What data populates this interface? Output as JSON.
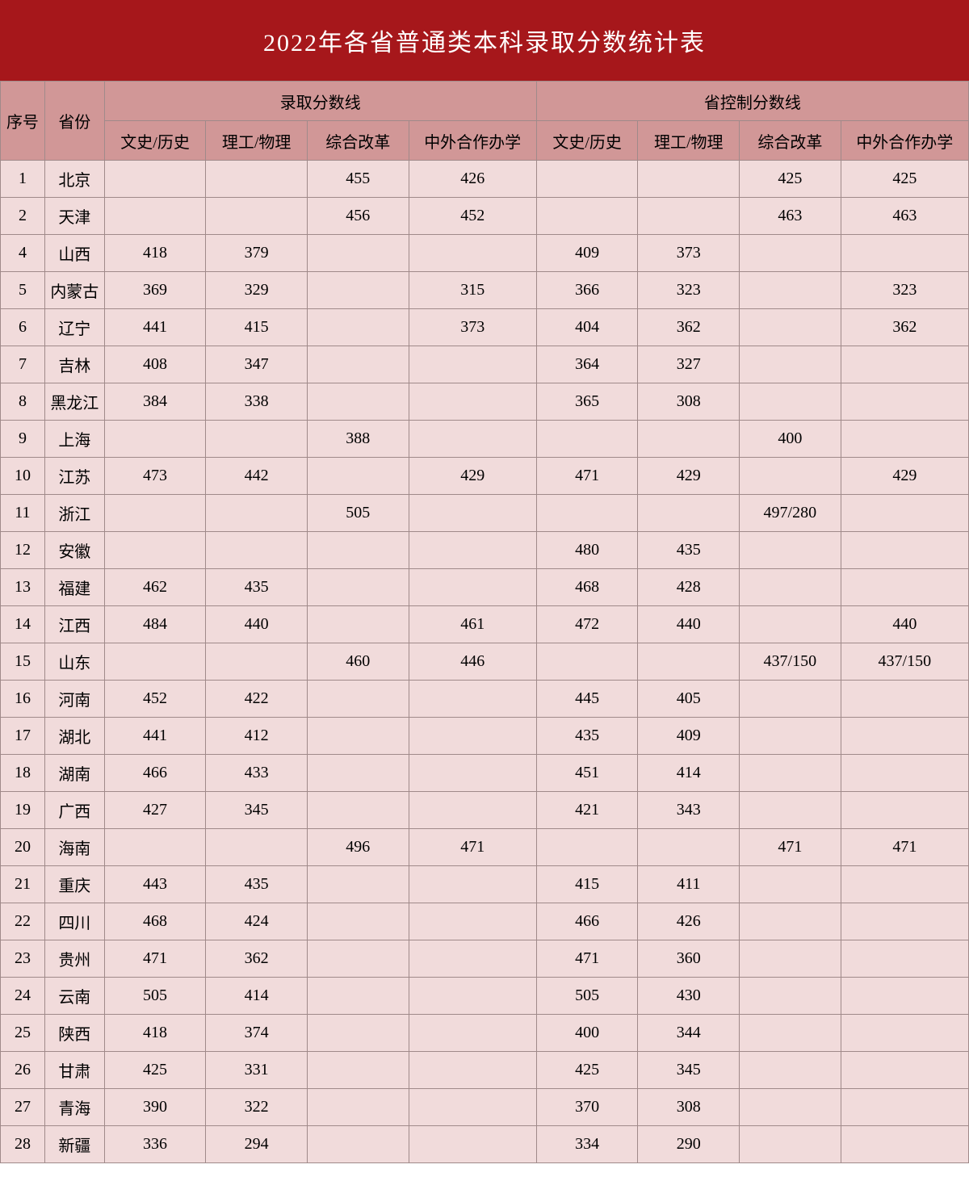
{
  "title": "2022年各省普通类本科录取分数统计表",
  "headers": {
    "idx": "序号",
    "province": "省份",
    "group1": "录取分数线",
    "group2": "省控制分数线",
    "sub": [
      "文史/历史",
      "理工/物理",
      "综合改革",
      "中外合作办学"
    ]
  },
  "rows": [
    {
      "idx": "1",
      "p": "北京",
      "a": [
        "",
        "",
        "455",
        "426"
      ],
      "b": [
        "",
        "",
        "425",
        "425"
      ]
    },
    {
      "idx": "2",
      "p": "天津",
      "a": [
        "",
        "",
        "456",
        "452"
      ],
      "b": [
        "",
        "",
        "463",
        "463"
      ]
    },
    {
      "idx": "4",
      "p": "山西",
      "a": [
        "418",
        "379",
        "",
        ""
      ],
      "b": [
        "409",
        "373",
        "",
        ""
      ]
    },
    {
      "idx": "5",
      "p": "内蒙古",
      "a": [
        "369",
        "329",
        "",
        "315"
      ],
      "b": [
        "366",
        "323",
        "",
        "323"
      ]
    },
    {
      "idx": "6",
      "p": "辽宁",
      "a": [
        "441",
        "415",
        "",
        "373"
      ],
      "b": [
        "404",
        "362",
        "",
        "362"
      ]
    },
    {
      "idx": "7",
      "p": "吉林",
      "a": [
        "408",
        "347",
        "",
        ""
      ],
      "b": [
        "364",
        "327",
        "",
        ""
      ]
    },
    {
      "idx": "8",
      "p": "黑龙江",
      "a": [
        "384",
        "338",
        "",
        ""
      ],
      "b": [
        "365",
        "308",
        "",
        ""
      ]
    },
    {
      "idx": "9",
      "p": "上海",
      "a": [
        "",
        "",
        "388",
        ""
      ],
      "b": [
        "",
        "",
        "400",
        ""
      ]
    },
    {
      "idx": "10",
      "p": "江苏",
      "a": [
        "473",
        "442",
        "",
        "429"
      ],
      "b": [
        "471",
        "429",
        "",
        "429"
      ]
    },
    {
      "idx": "11",
      "p": "浙江",
      "a": [
        "",
        "",
        "505",
        ""
      ],
      "b": [
        "",
        "",
        "497/280",
        ""
      ]
    },
    {
      "idx": "12",
      "p": "安徽",
      "a": [
        "",
        "",
        "",
        ""
      ],
      "b": [
        "480",
        "435",
        "",
        ""
      ]
    },
    {
      "idx": "13",
      "p": "福建",
      "a": [
        "462",
        "435",
        "",
        ""
      ],
      "b": [
        "468",
        "428",
        "",
        ""
      ]
    },
    {
      "idx": "14",
      "p": "江西",
      "a": [
        "484",
        "440",
        "",
        "461"
      ],
      "b": [
        "472",
        "440",
        "",
        "440"
      ]
    },
    {
      "idx": "15",
      "p": "山东",
      "a": [
        "",
        "",
        "460",
        "446"
      ],
      "b": [
        "",
        "",
        "437/150",
        "437/150"
      ]
    },
    {
      "idx": "16",
      "p": "河南",
      "a": [
        "452",
        "422",
        "",
        ""
      ],
      "b": [
        "445",
        "405",
        "",
        ""
      ]
    },
    {
      "idx": "17",
      "p": "湖北",
      "a": [
        "441",
        "412",
        "",
        ""
      ],
      "b": [
        "435",
        "409",
        "",
        ""
      ]
    },
    {
      "idx": "18",
      "p": "湖南",
      "a": [
        "466",
        "433",
        "",
        ""
      ],
      "b": [
        "451",
        "414",
        "",
        ""
      ]
    },
    {
      "idx": "19",
      "p": "广西",
      "a": [
        "427",
        "345",
        "",
        ""
      ],
      "b": [
        "421",
        "343",
        "",
        ""
      ]
    },
    {
      "idx": "20",
      "p": "海南",
      "a": [
        "",
        "",
        "496",
        "471"
      ],
      "b": [
        "",
        "",
        "471",
        "471"
      ]
    },
    {
      "idx": "21",
      "p": "重庆",
      "a": [
        "443",
        "435",
        "",
        ""
      ],
      "b": [
        "415",
        "411",
        "",
        ""
      ]
    },
    {
      "idx": "22",
      "p": "四川",
      "a": [
        "468",
        "424",
        "",
        ""
      ],
      "b": [
        "466",
        "426",
        "",
        ""
      ]
    },
    {
      "idx": "23",
      "p": "贵州",
      "a": [
        "471",
        "362",
        "",
        ""
      ],
      "b": [
        "471",
        "360",
        "",
        ""
      ]
    },
    {
      "idx": "24",
      "p": "云南",
      "a": [
        "505",
        "414",
        "",
        ""
      ],
      "b": [
        "505",
        "430",
        "",
        ""
      ]
    },
    {
      "idx": "25",
      "p": "陕西",
      "a": [
        "418",
        "374",
        "",
        ""
      ],
      "b": [
        "400",
        "344",
        "",
        ""
      ]
    },
    {
      "idx": "26",
      "p": "甘肃",
      "a": [
        "425",
        "331",
        "",
        ""
      ],
      "b": [
        "425",
        "345",
        "",
        ""
      ]
    },
    {
      "idx": "27",
      "p": "青海",
      "a": [
        "390",
        "322",
        "",
        ""
      ],
      "b": [
        "370",
        "308",
        "",
        ""
      ]
    },
    {
      "idx": "28",
      "p": "新疆",
      "a": [
        "336",
        "294",
        "",
        ""
      ],
      "b": [
        "334",
        "290",
        "",
        ""
      ]
    }
  ]
}
